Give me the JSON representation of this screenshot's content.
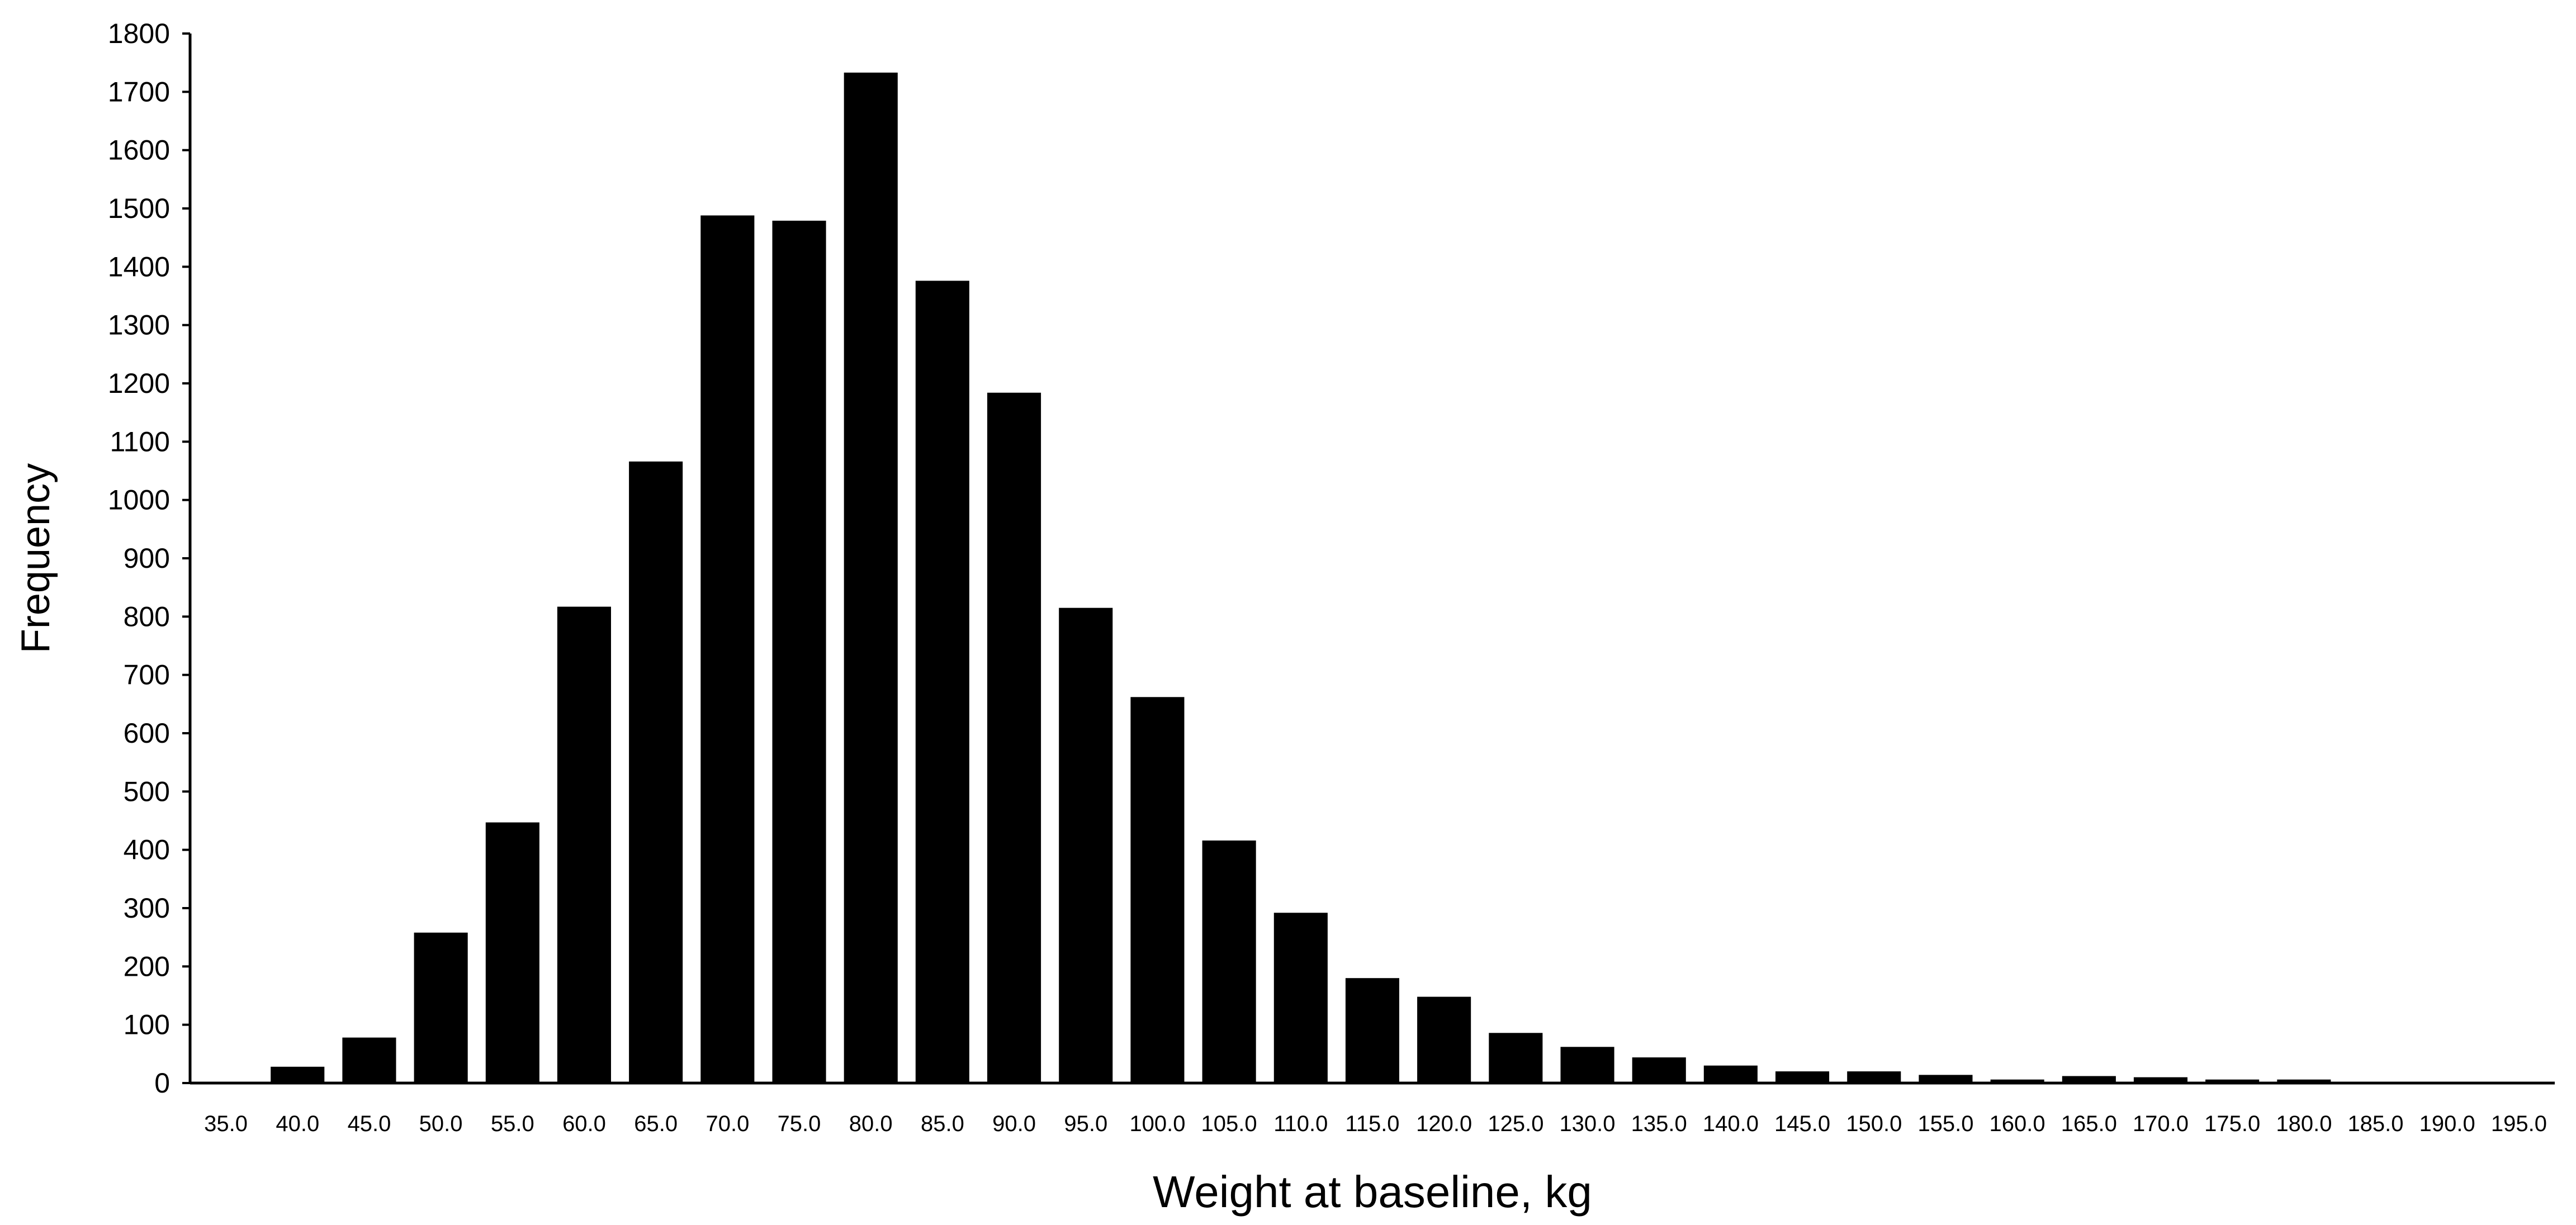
{
  "chart_data": {
    "type": "bar",
    "title": "",
    "xlabel": "Weight at baseline, kg",
    "ylabel": "Frequency",
    "ylim": [
      0,
      1800
    ],
    "yticks": [
      "0",
      "100",
      "200",
      "300",
      "400",
      "500",
      "600",
      "700",
      "800",
      "900",
      "1000",
      "1100",
      "1200",
      "1300",
      "1400",
      "1500",
      "1600",
      "1700",
      "1800"
    ],
    "categories": [
      "35.0",
      "40.0",
      "45.0",
      "50.0",
      "55.0",
      "60.0",
      "65.0",
      "70.0",
      "75.0",
      "80.0",
      "85.0",
      "90.0",
      "95.0",
      "100.0",
      "105.0",
      "110.0",
      "115.0",
      "120.0",
      "125.0",
      "130.0",
      "135.0",
      "140.0",
      "145.0",
      "150.0",
      "155.0",
      "160.0",
      "165.0",
      "170.0",
      "175.0",
      "180.0",
      "185.0",
      "190.0",
      "195.0"
    ],
    "values": [
      0,
      28,
      78,
      258,
      447,
      817,
      1066,
      1488,
      1479,
      1733,
      1376,
      1184,
      815,
      662,
      416,
      292,
      180,
      148,
      86,
      62,
      44,
      30,
      20,
      20,
      14,
      6,
      12,
      10,
      6,
      6,
      0,
      0,
      0
    ],
    "bar_color": "#000000",
    "grid": false,
    "legend": "none"
  }
}
